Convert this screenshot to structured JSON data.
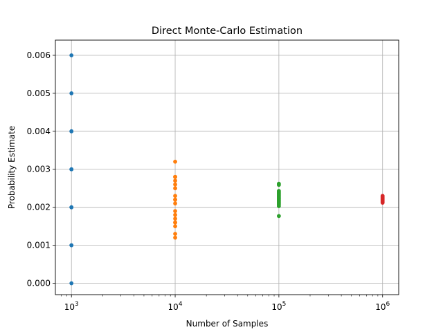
{
  "chart_data": {
    "type": "scatter",
    "title": "Direct Monte-Carlo Estimation",
    "xlabel": "Number of Samples",
    "ylabel": "Probability Estimate",
    "xscale": "log",
    "xlim": [
      700,
      1430000
    ],
    "ylim": [
      -0.0003,
      0.0064
    ],
    "grid": true,
    "x_ticks": [
      {
        "value": 1000,
        "base": "10",
        "exp": "3"
      },
      {
        "value": 10000,
        "base": "10",
        "exp": "4"
      },
      {
        "value": 100000,
        "base": "10",
        "exp": "5"
      },
      {
        "value": 1000000,
        "base": "10",
        "exp": "6"
      }
    ],
    "y_ticks": [
      {
        "value": 0.0,
        "label": "0.000"
      },
      {
        "value": 0.001,
        "label": "0.001"
      },
      {
        "value": 0.002,
        "label": "0.002"
      },
      {
        "value": 0.003,
        "label": "0.003"
      },
      {
        "value": 0.004,
        "label": "0.004"
      },
      {
        "value": 0.005,
        "label": "0.005"
      },
      {
        "value": 0.006,
        "label": "0.006"
      }
    ],
    "series": [
      {
        "x": 1000,
        "color": "#1f77b4",
        "y": [
          0.0,
          0.001,
          0.001,
          0.002,
          0.002,
          0.002,
          0.003,
          0.003,
          0.003,
          0.004,
          0.004,
          0.005,
          0.006
        ]
      },
      {
        "x": 10000,
        "color": "#ff7f0e",
        "y": [
          0.0012,
          0.0013,
          0.0015,
          0.0016,
          0.0016,
          0.0017,
          0.0018,
          0.0019,
          0.0021,
          0.0022,
          0.0022,
          0.0023,
          0.0025,
          0.0026,
          0.0027,
          0.0028,
          0.0028,
          0.0032
        ]
      },
      {
        "x": 100000,
        "color": "#2ca02c",
        "y": [
          0.00177,
          0.00203,
          0.00207,
          0.0021,
          0.00213,
          0.00216,
          0.00219,
          0.00222,
          0.00225,
          0.00228,
          0.00231,
          0.00234,
          0.00237,
          0.0024,
          0.00243,
          0.00259,
          0.00262
        ]
      },
      {
        "x": 1000000,
        "color": "#d62728",
        "y": [
          0.00212,
          0.00214,
          0.00216,
          0.00218,
          0.0022,
          0.00222,
          0.00224,
          0.00226,
          0.00228,
          0.0023
        ]
      }
    ]
  }
}
